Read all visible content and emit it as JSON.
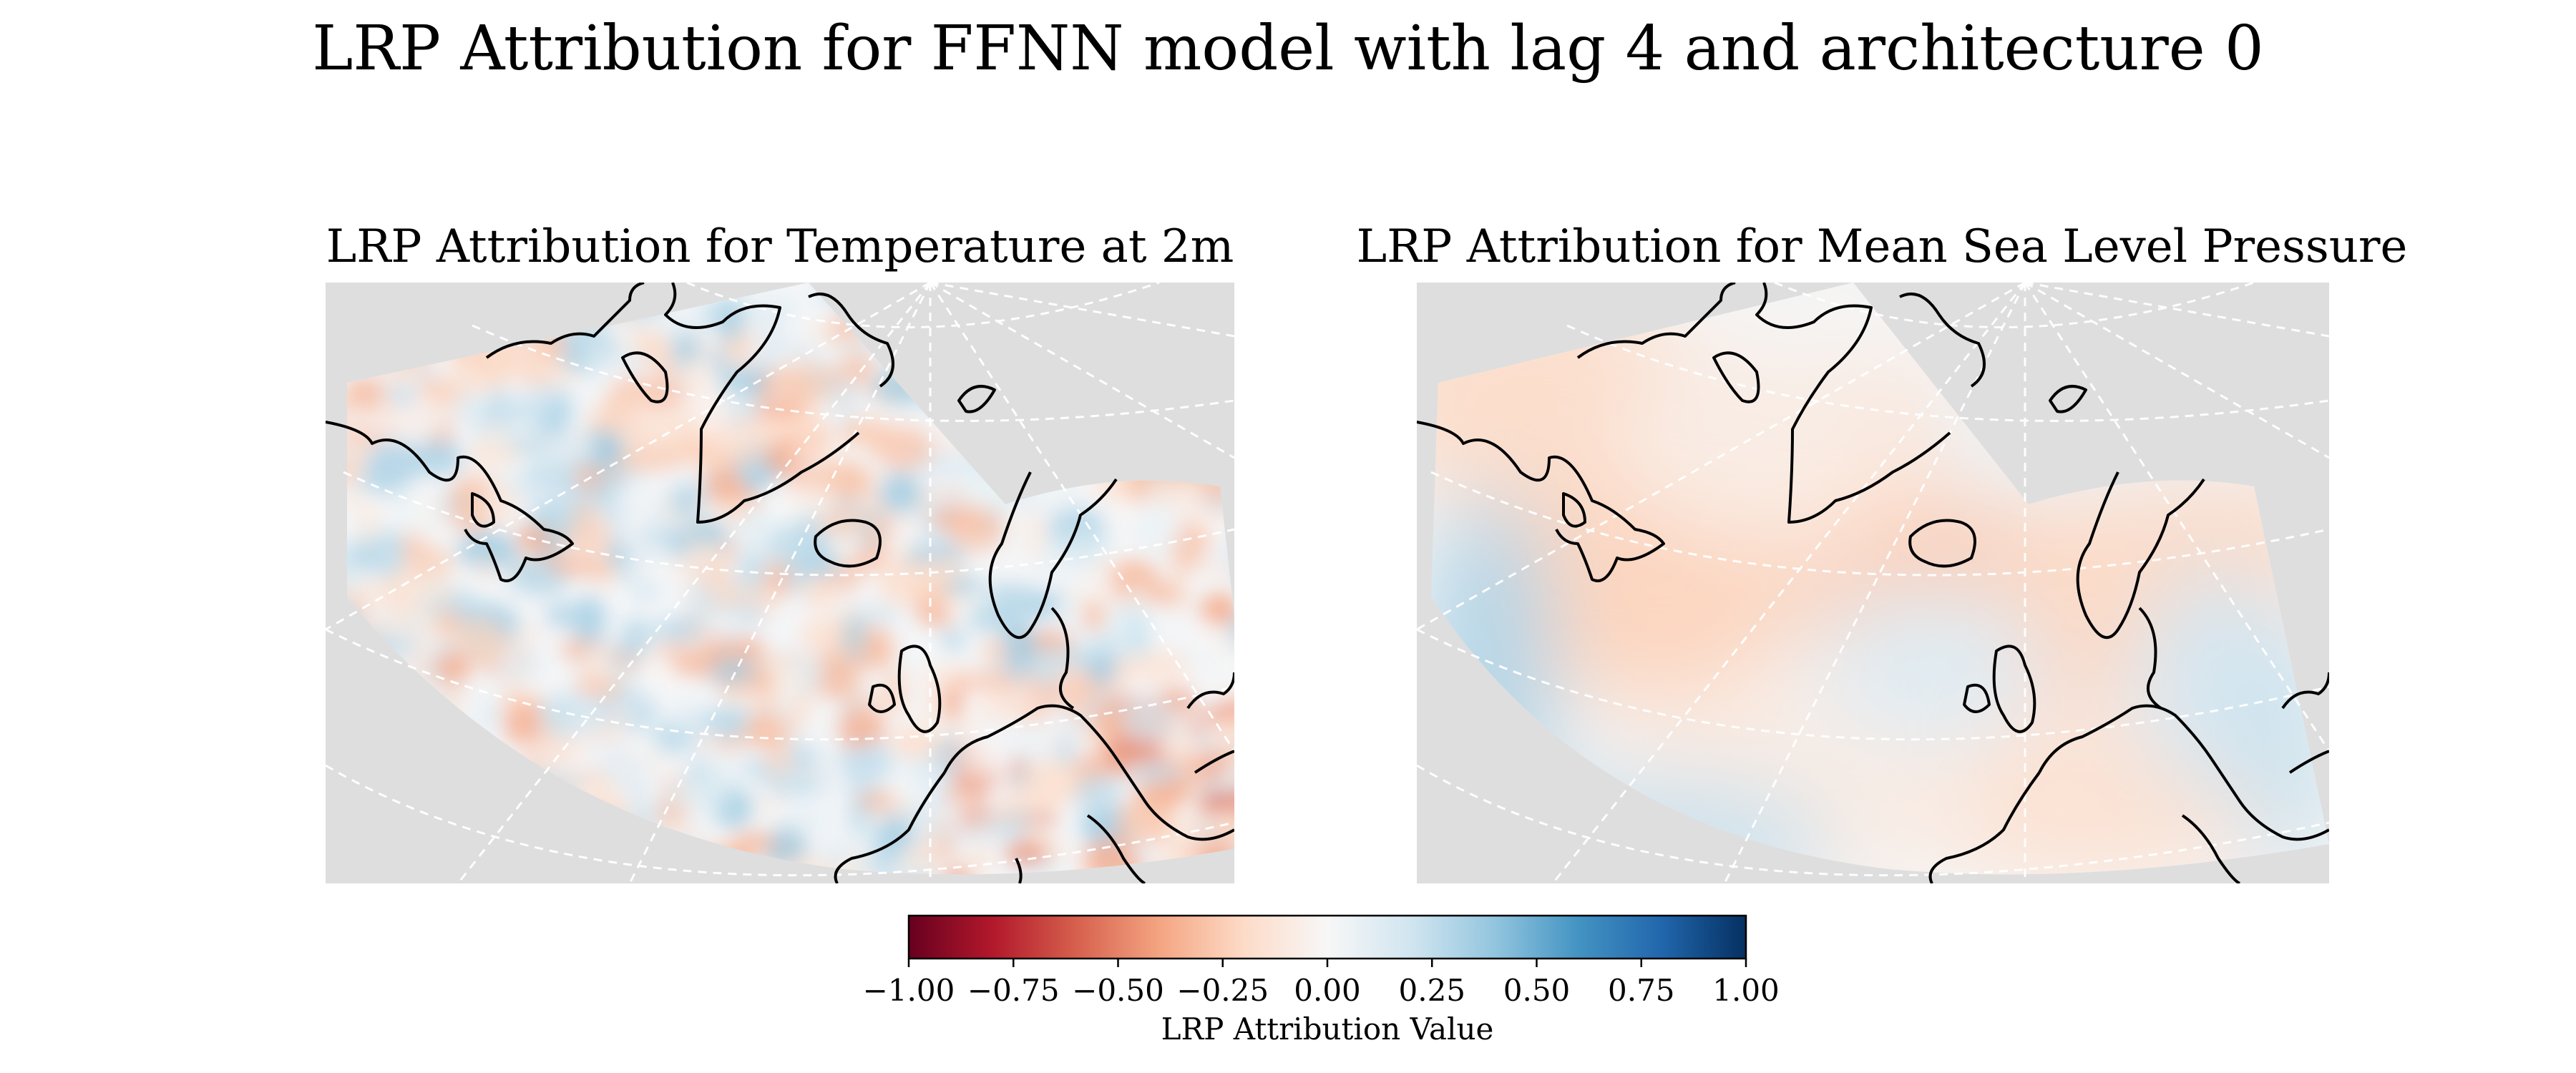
{
  "figure": {
    "suptitle": "LRP Attribution for FFNN model with lag 4 and architecture 0"
  },
  "chart_data": [
    {
      "type": "heatmap",
      "title": "LRP Attribution for Temperature at 2m",
      "variable": "Temperature at 2m",
      "projection": "polar stereographic sector over the North Atlantic and Europe",
      "features": [
        "coastlines",
        "dashed graticule"
      ],
      "value_range": [
        -1.0,
        1.0
      ],
      "observed_range_approx": [
        -0.45,
        0.5
      ],
      "pattern": "small-scale noisy red/blue patches, mostly light; stronger positive over southern Europe and northern Atlantic"
    },
    {
      "type": "heatmap",
      "title": "LRP Attribution for Mean Sea Level Pressure",
      "variable": "Mean Sea Level Pressure",
      "projection": "polar stereographic sector over the North Atlantic and Europe",
      "features": [
        "coastlines",
        "dashed graticule"
      ],
      "value_range": [
        -1.0,
        1.0
      ],
      "observed_range_approx": [
        -0.35,
        0.4
      ],
      "pattern": "smooth large-scale field; negative near Greenland and central North Atlantic, positive along western and south-western edges"
    }
  ],
  "colorbar": {
    "colormap": "RdBu",
    "min": -1.0,
    "max": 1.0,
    "ticks": [
      "−1.00",
      "−0.75",
      "−0.50",
      "−0.25",
      "0.00",
      "0.25",
      "0.50",
      "0.75",
      "1.00"
    ],
    "label": "LRP Attribution Value",
    "stops": [
      "#67001f",
      "#b2182b",
      "#d6604d",
      "#f4a582",
      "#fddbc7",
      "#f7f7f7",
      "#d1e5f0",
      "#92c5de",
      "#4393c3",
      "#2166ac",
      "#053061"
    ]
  },
  "colors": {
    "map_background": "#dedede",
    "coastline": "#000000",
    "gridline": "#ffffff"
  }
}
